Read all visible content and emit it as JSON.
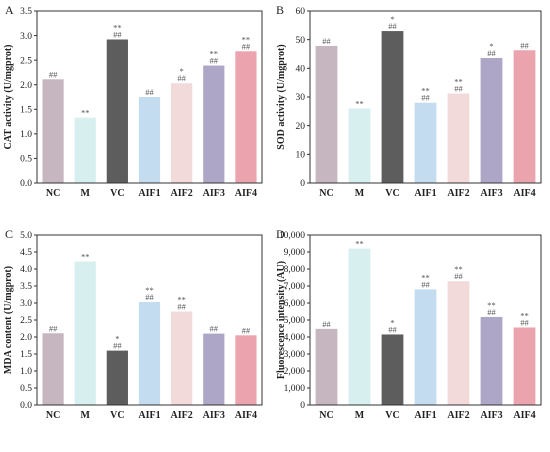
{
  "chart_data": [
    {
      "type": "bar",
      "panel": "A",
      "ylabel": "CAT activity (U/mgprot)",
      "categories": [
        "NC",
        "M",
        "VC",
        "AIF1",
        "AIF2",
        "AIF3",
        "AIF4"
      ],
      "values": [
        2.11,
        1.33,
        2.92,
        1.75,
        2.03,
        2.39,
        2.68
      ],
      "significance": [
        [
          "##"
        ],
        [
          "**"
        ],
        [
          "**",
          "##"
        ],
        [
          "##"
        ],
        [
          "*",
          "##"
        ],
        [
          "**",
          "##"
        ],
        [
          "**",
          "##"
        ]
      ],
      "ylim": [
        0,
        3.5
      ],
      "yticks": [
        "0.0",
        "0.5",
        "1.0",
        "1.5",
        "2.0",
        "2.5",
        "3.0",
        "3.5"
      ],
      "colors": [
        "#c5b6bf",
        "#d7efee",
        "#5d5d5d",
        "#c4dcef",
        "#f2dada",
        "#ada6c6",
        "#eba4ad"
      ]
    },
    {
      "type": "bar",
      "panel": "B",
      "ylabel": "SOD activity (U/mgprot)",
      "categories": [
        "NC",
        "M",
        "VC",
        "AIF1",
        "AIF2",
        "AIF3",
        "AIF4"
      ],
      "values": [
        47.8,
        26.0,
        53.0,
        28.0,
        31.2,
        43.6,
        46.3
      ],
      "significance": [
        [
          "##"
        ],
        [
          "**"
        ],
        [
          "*",
          "##"
        ],
        [
          "**",
          "##"
        ],
        [
          "**",
          "##"
        ],
        [
          "*",
          "##"
        ],
        [
          "##"
        ]
      ],
      "ylim": [
        0,
        60
      ],
      "yticks": [
        "0",
        "10",
        "20",
        "30",
        "40",
        "50",
        "60"
      ],
      "colors": [
        "#c5b6bf",
        "#d7efee",
        "#5d5d5d",
        "#c4dcef",
        "#f2dada",
        "#ada6c6",
        "#eba4ad"
      ]
    },
    {
      "type": "bar",
      "panel": "C",
      "ylabel": "MDA content (U/mgprot)",
      "categories": [
        "NC",
        "M",
        "VC",
        "AIF1",
        "AIF2",
        "AIF3",
        "AIF4"
      ],
      "values": [
        2.11,
        4.22,
        1.6,
        3.03,
        2.75,
        2.1,
        2.05
      ],
      "significance": [
        [
          "##"
        ],
        [
          "**"
        ],
        [
          "*",
          "##"
        ],
        [
          "**",
          "##"
        ],
        [
          "**",
          "##"
        ],
        [
          "##"
        ],
        [
          "##"
        ]
      ],
      "ylim": [
        0,
        5.0
      ],
      "yticks": [
        "0.0",
        "0.5",
        "1.0",
        "1.5",
        "2.0",
        "2.5",
        "3.0",
        "3.5",
        "4.0",
        "4.5",
        "5.0"
      ],
      "colors": [
        "#c5b6bf",
        "#d7efee",
        "#5d5d5d",
        "#c4dcef",
        "#f2dada",
        "#ada6c6",
        "#eba4ad"
      ]
    },
    {
      "type": "bar",
      "panel": "D",
      "ylabel": "Fluorescence intensity (AU)",
      "categories": [
        "NC",
        "M",
        "VC",
        "AIF1",
        "AIF2",
        "AIF3",
        "AIF4"
      ],
      "values": [
        4480,
        9200,
        4150,
        6800,
        7280,
        5180,
        4560
      ],
      "significance": [
        [
          "##"
        ],
        [
          "**"
        ],
        [
          "*",
          "##"
        ],
        [
          "**",
          "##"
        ],
        [
          "**",
          "##"
        ],
        [
          "**",
          "##"
        ],
        [
          "**",
          "##"
        ]
      ],
      "ylim": [
        0,
        10000
      ],
      "yticks": [
        "0",
        "1,000",
        "2,000",
        "3,000",
        "4,000",
        "5,000",
        "6,000",
        "7,000",
        "8,000",
        "9,000",
        "10,000"
      ],
      "colors": [
        "#c5b6bf",
        "#d7efee",
        "#5d5d5d",
        "#c4dcef",
        "#f2dada",
        "#ada6c6",
        "#eba4ad"
      ]
    }
  ]
}
